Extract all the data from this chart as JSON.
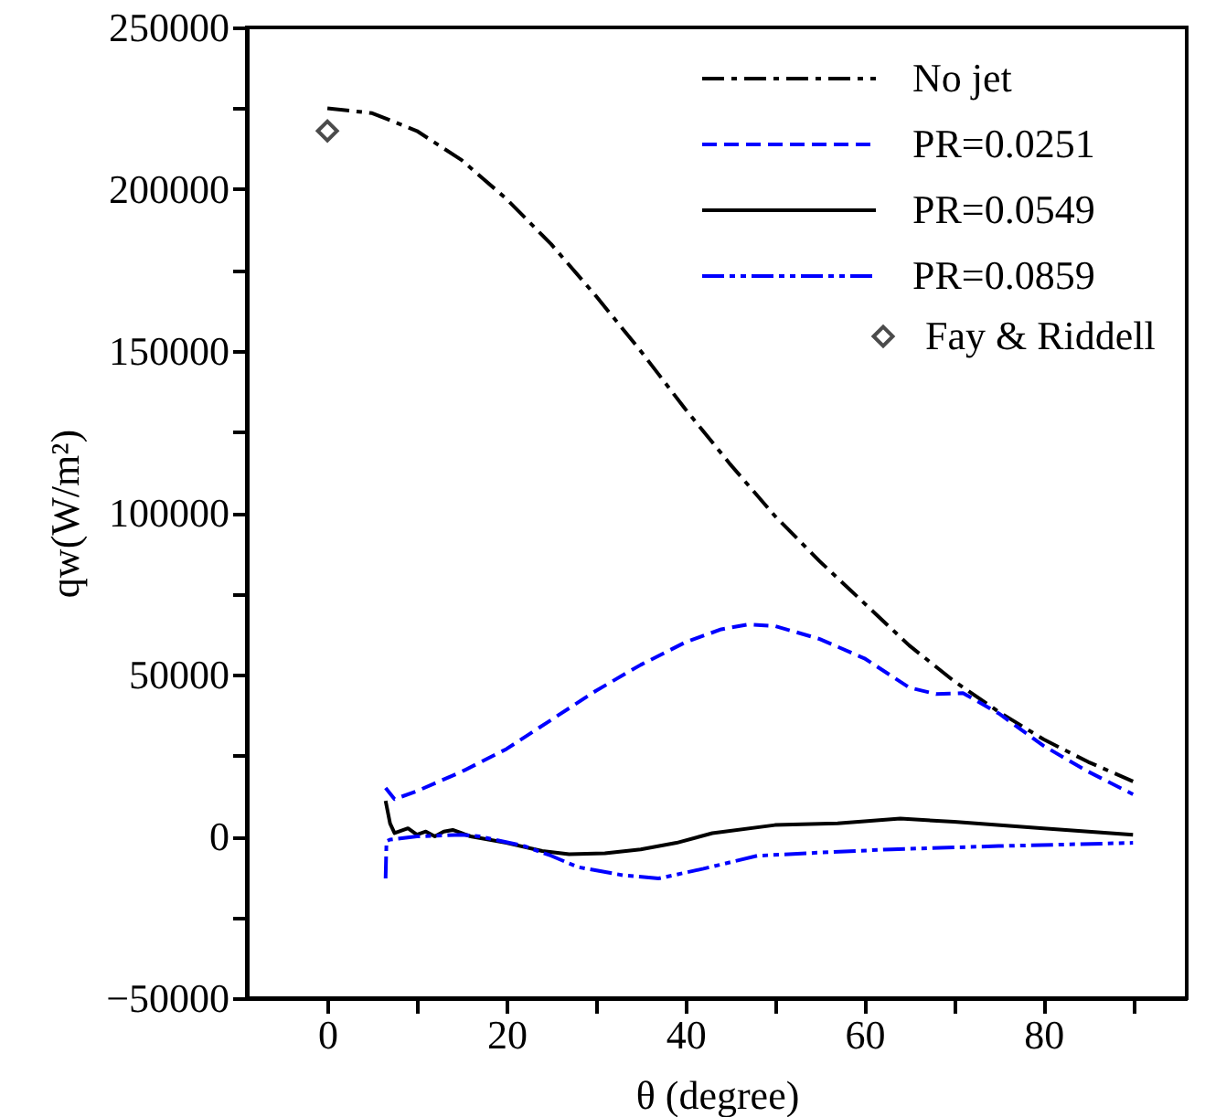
{
  "chart_data": {
    "type": "line",
    "xlabel": "θ (degree)",
    "ylabel": "qw(W/m²)",
    "xlim": [
      -9,
      96
    ],
    "ylim": [
      -50000,
      250000
    ],
    "xticks": [
      0,
      {
        "value": 10,
        "label": null
      },
      20,
      {
        "value": 30,
        "label": null
      },
      40,
      {
        "value": 50,
        "label": null
      },
      60,
      {
        "value": 70,
        "label": null
      },
      80,
      {
        "value": 90,
        "label": null
      }
    ],
    "yticks": [
      -50000,
      {
        "value": -25000,
        "label": null
      },
      0,
      {
        "value": 25000,
        "label": null
      },
      50000,
      {
        "value": 75000,
        "label": null
      },
      100000,
      {
        "value": 125000,
        "label": null
      },
      150000,
      {
        "value": 175000,
        "label": null
      },
      200000,
      {
        "value": 225000,
        "label": null
      },
      250000
    ],
    "grid": false,
    "legend": "top right",
    "series": [
      {
        "name": "No jet",
        "color": "#000000",
        "line_style": "dashdot",
        "x": [
          0,
          5,
          10,
          15,
          20,
          25,
          30,
          35,
          40,
          45,
          50,
          55,
          60,
          65,
          70,
          75,
          80,
          85,
          90
        ],
        "values": [
          225000,
          223500,
          218000,
          209000,
          197000,
          183000,
          167000,
          150000,
          132000,
          115000,
          99000,
          85000,
          72000,
          59000,
          48000,
          38500,
          30000,
          23000,
          17000
        ]
      },
      {
        "name": "PR=0.0251",
        "color": "#0000ff",
        "line_style": "dashed",
        "x": [
          6.5,
          7.5,
          10,
          15,
          20,
          25,
          30,
          35,
          40,
          44,
          47,
          50,
          55,
          60,
          65,
          68,
          71,
          75,
          80,
          85,
          90
        ],
        "values": [
          15000,
          11500,
          14000,
          20000,
          27000,
          36000,
          45000,
          53000,
          60000,
          64000,
          65500,
          65000,
          61000,
          55000,
          46000,
          44000,
          44300,
          38000,
          28000,
          20000,
          13000
        ]
      },
      {
        "name": "PR=0.0549",
        "color": "#000000",
        "line_style": "solid",
        "x": [
          6.5,
          7,
          7.5,
          8,
          9,
          10,
          11,
          12,
          13,
          14,
          15,
          16,
          20,
          24,
          27,
          31,
          35,
          39,
          43,
          50,
          57,
          64,
          70,
          80,
          90
        ],
        "values": [
          11000,
          4000,
          1000,
          1500,
          2500,
          500,
          1500,
          0,
          1500,
          2000,
          1000,
          0,
          -2000,
          -4500,
          -5500,
          -5200,
          -4000,
          -2000,
          1000,
          3500,
          4000,
          5500,
          4500,
          2500,
          500
        ]
      },
      {
        "name": "PR=0.0859",
        "color": "#0000ff",
        "line_style": "dashdotdot",
        "x": [
          6.5,
          6.6,
          7,
          10,
          15,
          17,
          22,
          25,
          28,
          33,
          37,
          42,
          48,
          55,
          63,
          75,
          90
        ],
        "values": [
          -13000,
          -1500,
          -1000,
          0,
          500,
          0,
          -3000,
          -6000,
          -9500,
          -12000,
          -13000,
          -10000,
          -6000,
          -5000,
          -4000,
          -3000,
          -2000
        ]
      },
      {
        "name": "Fay & Riddell",
        "type": "scatter",
        "marker": "diamond",
        "color": "#000000",
        "x": [
          0
        ],
        "values": [
          218000
        ]
      }
    ]
  }
}
